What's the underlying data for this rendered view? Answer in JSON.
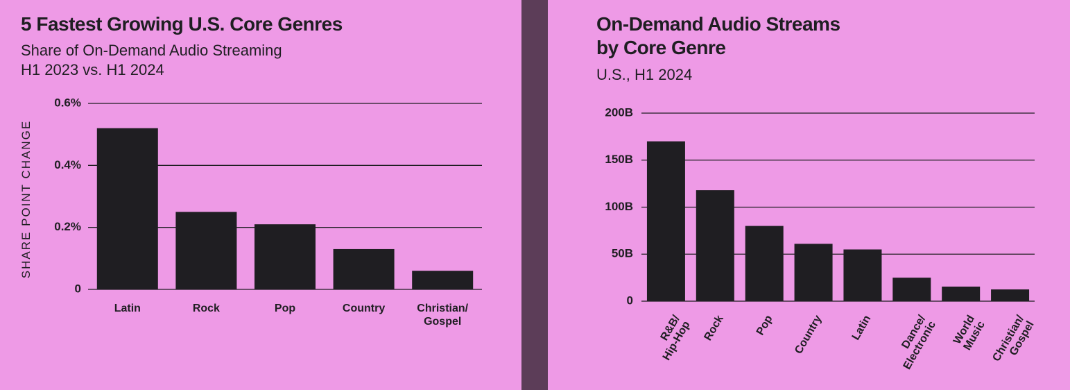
{
  "chart_data": [
    {
      "type": "bar",
      "title": "5 Fastest Growing U.S. Core Genres",
      "subtitle": "Share of On-Demand Audio Streaming\nH1 2023 vs. H1 2024",
      "y_label": "SHARE POINT CHANGE",
      "categories": [
        "Latin",
        "Rock",
        "Pop",
        "Country",
        "Christian/\nGospel"
      ],
      "values": [
        0.52,
        0.25,
        0.21,
        0.13,
        0.06
      ],
      "color": "#1f1e22",
      "ylim": [
        0,
        0.6
      ],
      "yticks": [
        0,
        {
          "value": 0.2,
          "label": "0.2%"
        },
        {
          "value": 0.4,
          "label": "0.4%"
        },
        {
          "value": 0.6,
          "label": "0.6%"
        }
      ],
      "grid": true
    },
    {
      "type": "bar",
      "title": "On-Demand Audio Streams\nby Core Genre",
      "subtitle": "U.S., H1 2024",
      "categories": [
        "R&B/\nHip-Hop",
        "Rock",
        "Pop",
        "Country",
        "Latin",
        "Dance/\nElectronic",
        "World\nMusic",
        "Christian/\nGospel"
      ],
      "values": [
        170,
        118,
        80,
        61,
        55,
        25,
        15.5,
        12.5
      ],
      "color": "#1f1e22",
      "ylim": [
        0,
        200
      ],
      "yticks": [
        0,
        {
          "value": 50,
          "label": "50B"
        },
        {
          "value": 100,
          "label": "100B"
        },
        {
          "value": 150,
          "label": "150B"
        },
        {
          "value": 200,
          "label": "200B"
        }
      ],
      "grid": true
    }
  ]
}
